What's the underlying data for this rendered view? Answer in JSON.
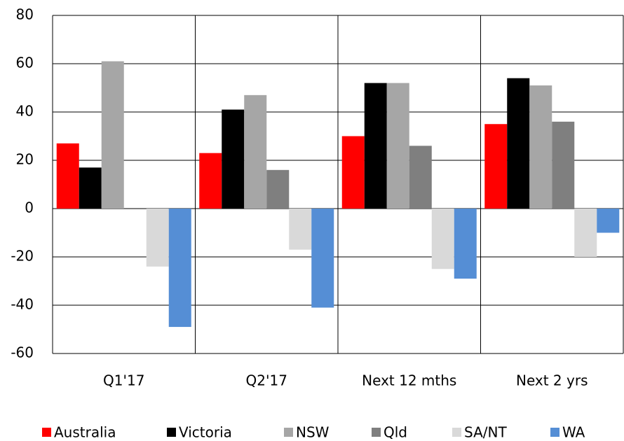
{
  "chart_data": {
    "type": "bar",
    "categories": [
      "Q1'17",
      "Q2'17",
      "Next 12 mths",
      "Next 2 yrs"
    ],
    "series": [
      {
        "name": "Australia",
        "color": "#ff0000",
        "values": [
          27,
          23,
          30,
          35
        ]
      },
      {
        "name": "Victoria",
        "color": "#000000",
        "values": [
          17,
          41,
          52,
          54
        ]
      },
      {
        "name": "NSW",
        "color": "#a6a6a6",
        "values": [
          61,
          47,
          52,
          51
        ]
      },
      {
        "name": "Qld",
        "color": "#7f7f7f",
        "values": [
          0,
          16,
          26,
          36
        ]
      },
      {
        "name": "SA/NT",
        "color": "#d9d9d9",
        "values": [
          -24,
          -17,
          -25,
          -20
        ]
      },
      {
        "name": "WA",
        "color": "#558ed5",
        "values": [
          -49,
          -41,
          -29,
          -10
        ]
      }
    ],
    "ylim": [
      -60,
      80
    ],
    "yticks": [
      -60,
      -40,
      -20,
      0,
      20,
      40,
      60,
      80
    ],
    "grid": true,
    "legend": "bottom"
  }
}
